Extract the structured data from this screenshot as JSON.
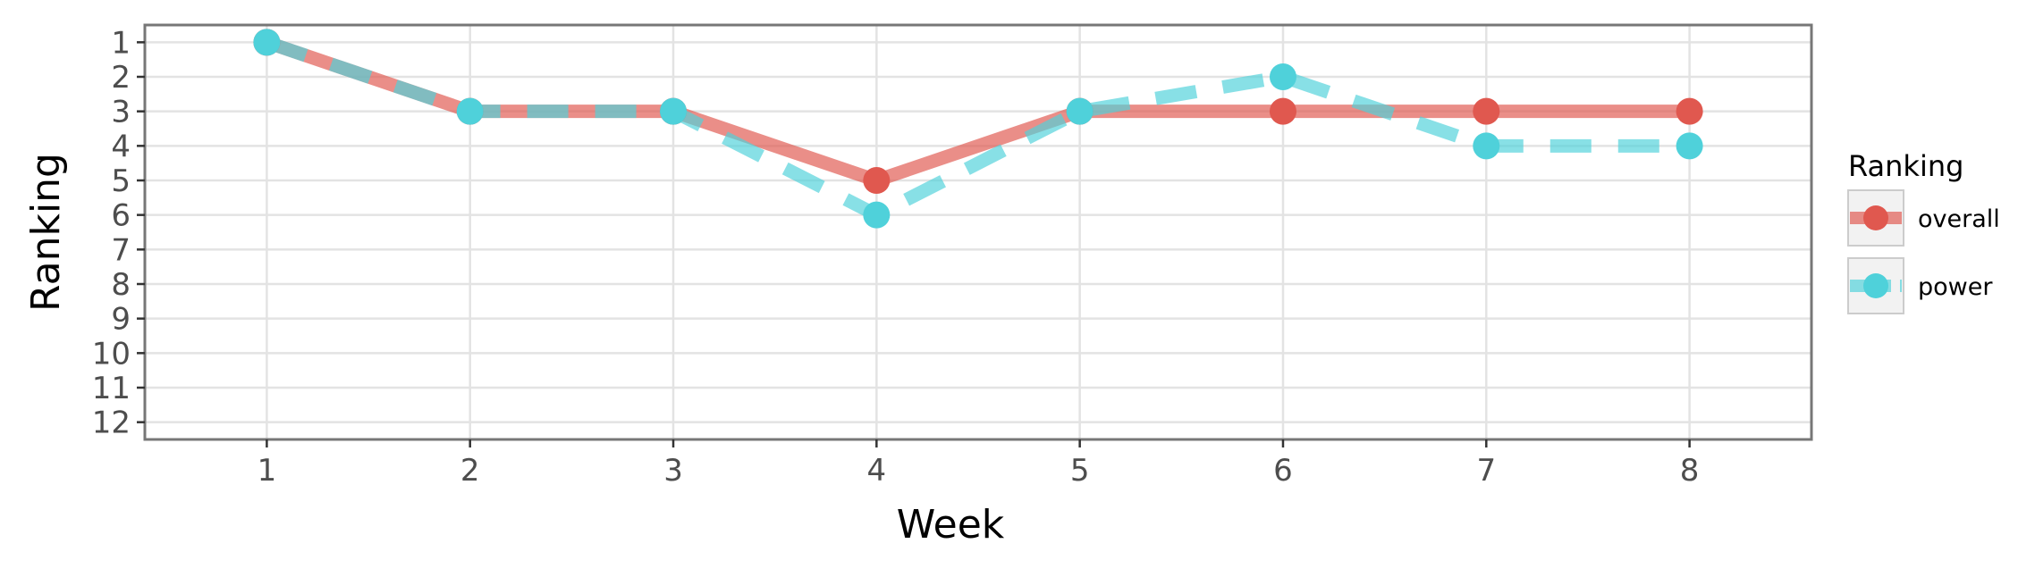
{
  "chart_data": {
    "type": "line",
    "title": "",
    "xlabel": "Week",
    "ylabel": "Ranking",
    "x": [
      1,
      2,
      3,
      4,
      5,
      6,
      7,
      8
    ],
    "xlim": [
      0.4,
      8.6
    ],
    "ylim": [
      12.5,
      0.5
    ],
    "y_reversed": true,
    "xticks": [
      1,
      2,
      3,
      4,
      5,
      6,
      7,
      8
    ],
    "yticks": [
      1,
      2,
      3,
      4,
      5,
      6,
      7,
      8,
      9,
      10,
      11,
      12
    ],
    "grid": true,
    "legend": {
      "title": "Ranking",
      "position": "right"
    },
    "series": [
      {
        "name": "overall",
        "values": [
          1,
          3,
          3,
          5,
          3,
          3,
          3,
          3
        ],
        "color": "#E0584F",
        "line_style": "solid"
      },
      {
        "name": "power",
        "values": [
          1,
          3,
          3,
          6,
          3,
          2,
          4,
          4
        ],
        "color": "#4FD1DA",
        "line_style": "dashed"
      }
    ]
  }
}
